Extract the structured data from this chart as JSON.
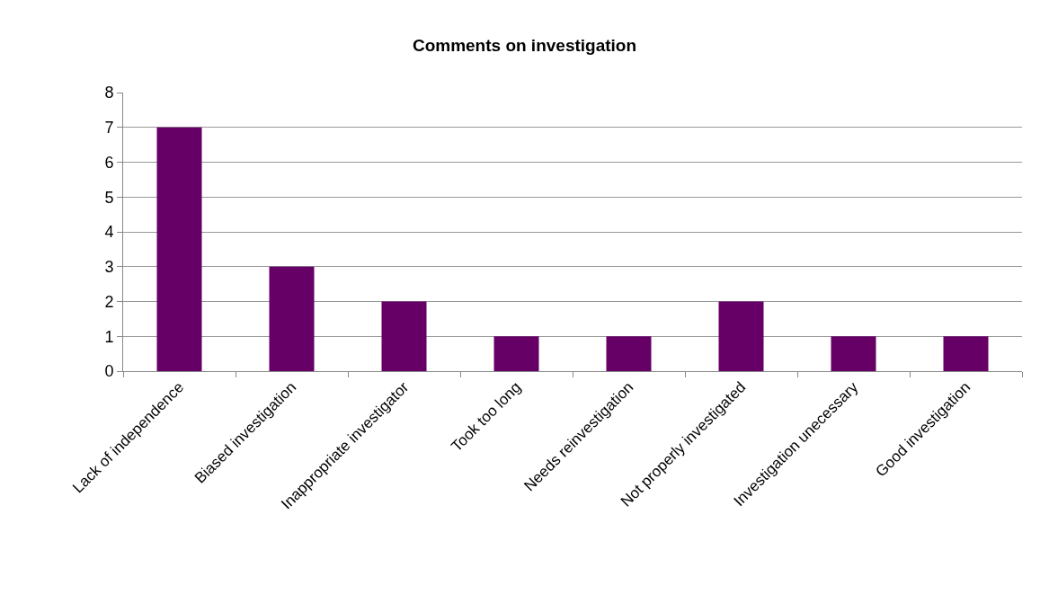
{
  "chart_data": {
    "type": "bar",
    "title": "Comments on investigation",
    "categories": [
      "Lack of independence",
      "Biased investigation",
      "Inappropriate investigator",
      "Took too long",
      "Needs reinvestigation",
      "Not properly investigated",
      "Investigation unecessary",
      "Good investigation"
    ],
    "values": [
      7,
      3,
      2,
      1,
      1,
      2,
      1,
      1
    ],
    "color": "#660066",
    "ylim": [
      0,
      8
    ],
    "yticks": [
      0,
      1,
      2,
      3,
      4,
      5,
      6,
      7,
      8
    ],
    "grid": "y"
  }
}
